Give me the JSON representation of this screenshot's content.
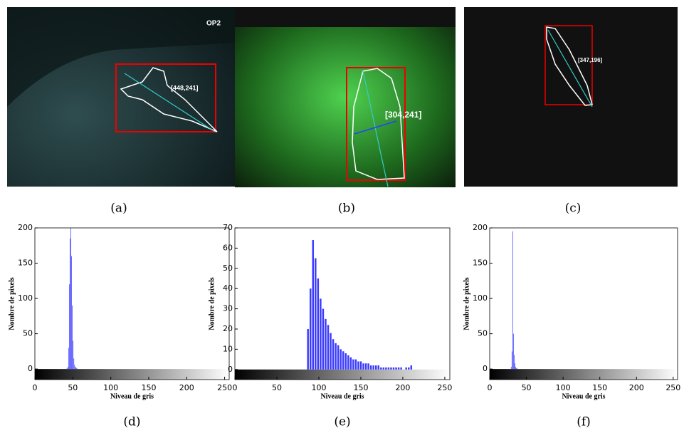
{
  "images": [
    {
      "overlay_label": "OP2",
      "coordinate": "[448,241]",
      "caption": "(a)"
    },
    {
      "coordinate": "[304,241]",
      "caption": "(b)"
    },
    {
      "coordinate": "[347,196]",
      "caption": "(c)"
    }
  ],
  "chart_data": [
    {
      "type": "histogram",
      "caption": "(d)",
      "xlabel": "Niveau de gris",
      "ylabel": "Nombre de pixels",
      "color": "#3b3bff",
      "bins": [
        42,
        43,
        44,
        45,
        46,
        47,
        48,
        49,
        50,
        51,
        52,
        53,
        54,
        55,
        56
      ],
      "values": [
        1,
        3,
        30,
        120,
        185,
        200,
        160,
        90,
        40,
        15,
        6,
        3,
        2,
        1
      ],
      "xlim": [
        0,
        256
      ],
      "ylim": [
        -15,
        200
      ],
      "xticks": [
        0,
        50,
        100,
        150,
        200,
        250
      ],
      "yticks": [
        0,
        50,
        100,
        150,
        200
      ],
      "colorbar": true
    },
    {
      "type": "histogram",
      "caption": "(e)",
      "xlabel": "Niveau de gris",
      "ylabel": "Nombre de pixels",
      "color": "#3b3bff",
      "bins": [
        86,
        89,
        92,
        95,
        98,
        101,
        104,
        107,
        110,
        113,
        116,
        119,
        122,
        125,
        128,
        131,
        134,
        137,
        140,
        143,
        146,
        149,
        152,
        155,
        158,
        161,
        164,
        167,
        170,
        173,
        176,
        179,
        182,
        185,
        188,
        191,
        194,
        197,
        200,
        203,
        206,
        209,
        212
      ],
      "values": [
        20,
        40,
        64,
        55,
        45,
        35,
        30,
        25,
        22,
        18,
        15,
        13,
        12,
        10,
        9,
        8,
        7,
        6,
        5,
        5,
        4,
        4,
        3,
        3,
        3,
        2,
        2,
        2,
        2,
        1,
        1,
        1,
        1,
        1,
        1,
        1,
        1,
        1,
        0,
        1,
        1,
        2
      ],
      "xlim": [
        0,
        256
      ],
      "ylim": [
        -5,
        70
      ],
      "xticks": [
        0,
        50,
        100,
        150,
        200,
        250
      ],
      "yticks": [
        0,
        10,
        20,
        30,
        40,
        50,
        60,
        70
      ],
      "colorbar": true
    },
    {
      "type": "histogram",
      "caption": "(f)",
      "xlabel": "Niveau de gris",
      "ylabel": "Nombre de pixels",
      "color": "#3b3bff",
      "bins": [
        29,
        30,
        31,
        32,
        33,
        34,
        35,
        36,
        37,
        38
      ],
      "values": [
        3,
        25,
        195,
        50,
        20,
        8,
        3,
        1,
        1
      ],
      "xlim": [
        0,
        256
      ],
      "ylim": [
        -15,
        200
      ],
      "xticks": [
        0,
        50,
        100,
        150,
        200,
        250
      ],
      "yticks": [
        0,
        50,
        100,
        150,
        200
      ],
      "colorbar": true
    }
  ]
}
